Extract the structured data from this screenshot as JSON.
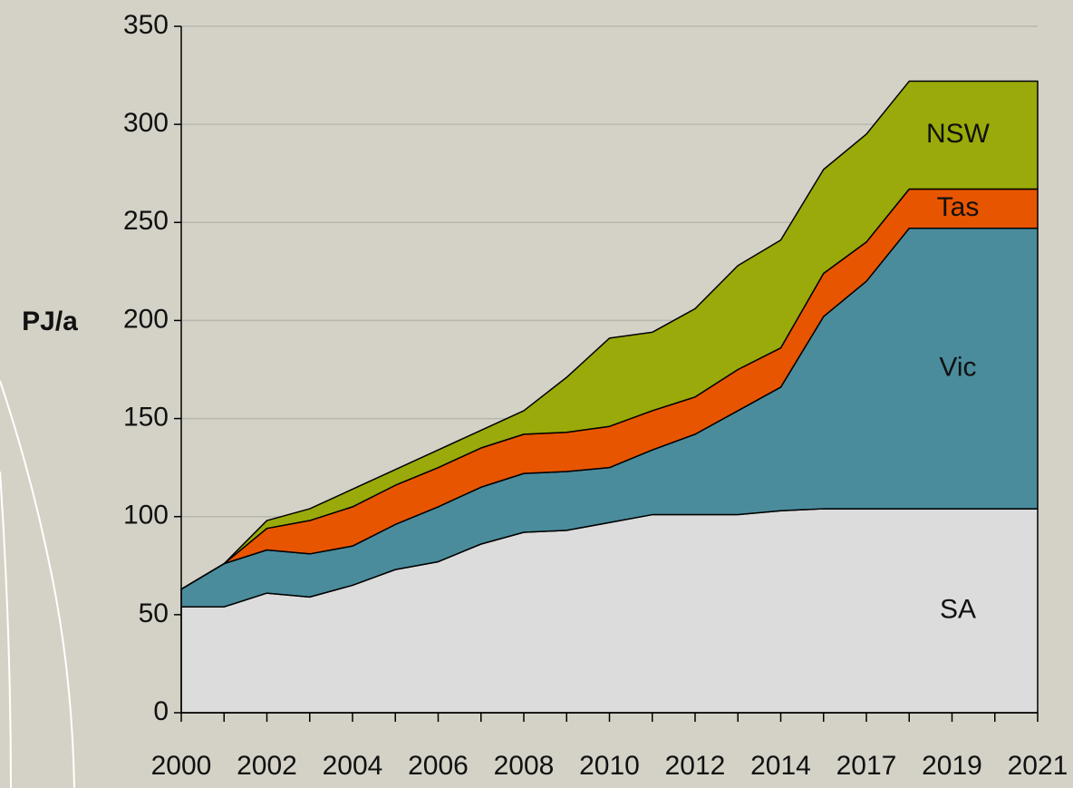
{
  "chart_data": {
    "type": "stacked_area",
    "y_label": "PJ/a",
    "categories": [
      "2000",
      null,
      "2002",
      null,
      "2004",
      null,
      "2006",
      null,
      "2008",
      null,
      "2010",
      null,
      "2012",
      null,
      "2014",
      null,
      "2017",
      null,
      "2019",
      null,
      "2021"
    ],
    "series": [
      {
        "name": "SA",
        "color": "#dcdcdc",
        "values": [
          54,
          54,
          61,
          59,
          65,
          73,
          77,
          86,
          92,
          93,
          97,
          101,
          101,
          101,
          103,
          104,
          104,
          104,
          104,
          104,
          104
        ]
      },
      {
        "name": "Vic",
        "color": "#4a8c9c",
        "values": [
          9,
          22,
          22,
          22,
          20,
          23,
          28,
          29,
          30,
          30,
          28,
          33,
          41,
          53,
          63,
          98,
          116,
          143,
          143,
          143,
          143
        ]
      },
      {
        "name": "Tas",
        "color": "#e85500",
        "values": [
          0,
          0,
          11,
          17,
          20,
          20,
          20,
          20,
          20,
          20,
          21,
          20,
          19,
          21,
          20,
          22,
          20,
          20,
          20,
          20,
          20
        ]
      },
      {
        "name": "NSW",
        "color": "#9aaa0a",
        "values": [
          0,
          0,
          4,
          6,
          9,
          8,
          9,
          9,
          12,
          28,
          45,
          40,
          45,
          53,
          55,
          53,
          55,
          55,
          55,
          55,
          55
        ]
      }
    ],
    "ylim": [
      0,
      350
    ],
    "yticks": [
      0,
      50,
      100,
      150,
      200,
      250,
      300,
      350
    ],
    "grid": true
  }
}
